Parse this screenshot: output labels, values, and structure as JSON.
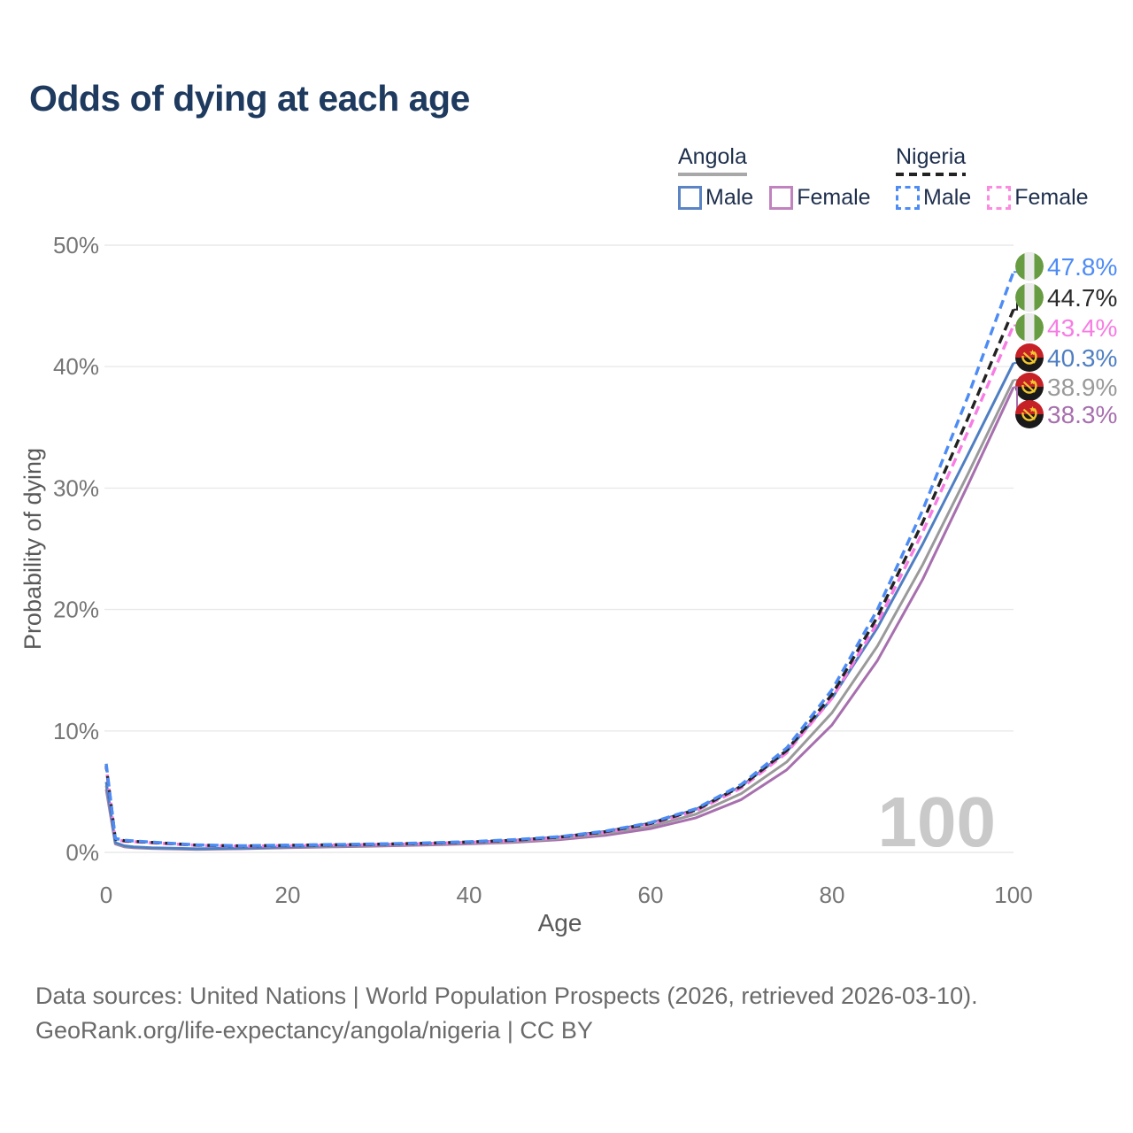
{
  "title": "Odds of dying at each age",
  "legend": {
    "groups": [
      {
        "name": "Angola",
        "line_style": "solid",
        "underline_color": "#a8a8a8",
        "items": [
          {
            "label": "Male",
            "color": "#5b84c4",
            "line_style": "solid"
          },
          {
            "label": "Female",
            "color": "#c083be",
            "line_style": "solid"
          }
        ]
      },
      {
        "name": "Nigeria",
        "line_style": "dashed",
        "underline_color": "#222222",
        "items": [
          {
            "label": "Male",
            "color": "#4d8bf5",
            "line_style": "dashed"
          },
          {
            "label": "Female",
            "color": "#fc8be0",
            "line_style": "dashed"
          }
        ]
      }
    ]
  },
  "footer": {
    "line1": "Data sources: United Nations | World Population Prospects (2026, retrieved 2026-03-10).",
    "line2": "GeoRank.org/life-expectancy/angola/nigeria | CC BY"
  },
  "chart_data": {
    "type": "line",
    "title": "Odds of dying at each age",
    "xlabel": "Age",
    "ylabel": "Probability of dying",
    "xlim": [
      0,
      100
    ],
    "ylim": [
      0,
      50
    ],
    "grid": "horizontal",
    "legend_position": "top-right",
    "age_marker": "100",
    "x_ticks": [
      {
        "v": 0,
        "label": "0"
      },
      {
        "v": 20,
        "label": "20"
      },
      {
        "v": 40,
        "label": "40"
      },
      {
        "v": 60,
        "label": "60"
      },
      {
        "v": 80,
        "label": "80"
      },
      {
        "v": 100,
        "label": "100"
      }
    ],
    "y_ticks": [
      {
        "v": 0,
        "label": "0%"
      },
      {
        "v": 10,
        "label": "10%"
      },
      {
        "v": 20,
        "label": "20%"
      },
      {
        "v": 30,
        "label": "30%"
      },
      {
        "v": 40,
        "label": "40%"
      },
      {
        "v": 50,
        "label": "50%"
      }
    ],
    "ages": [
      0,
      1,
      2,
      3,
      5,
      10,
      15,
      20,
      25,
      30,
      35,
      40,
      45,
      50,
      55,
      60,
      65,
      70,
      75,
      80,
      85,
      90,
      95,
      100
    ],
    "series": [
      {
        "name": "Nigeria Male",
        "country": "Nigeria",
        "sex": "Male",
        "color": "#4d8bf5",
        "line_style": "dashed",
        "flag": "nigeria",
        "end_value_pct": 47.8,
        "end_label": "47.8%",
        "label_color": "#4d8bf5",
        "values": [
          7.3,
          1.15,
          1.0,
          0.95,
          0.85,
          0.62,
          0.55,
          0.6,
          0.65,
          0.7,
          0.78,
          0.88,
          1.05,
          1.3,
          1.75,
          2.45,
          3.6,
          5.6,
          8.6,
          13.4,
          20.0,
          28.2,
          37.6,
          47.8
        ]
      },
      {
        "name": "Nigeria Both sexes",
        "country": "Nigeria",
        "sex": "Both sexes",
        "color": "#222222",
        "line_style": "dashed",
        "flag": "nigeria",
        "end_value_pct": 44.7,
        "end_label": "44.7%",
        "label_color": "#2b2b2b",
        "values": [
          7.15,
          1.1,
          0.96,
          0.91,
          0.82,
          0.6,
          0.53,
          0.58,
          0.63,
          0.68,
          0.75,
          0.85,
          1.0,
          1.26,
          1.7,
          2.38,
          3.5,
          5.45,
          8.4,
          13.0,
          19.4,
          27.2,
          35.8,
          44.7
        ]
      },
      {
        "name": "Nigeria Female",
        "country": "Nigeria",
        "sex": "Female",
        "color": "#f77ce3",
        "line_style": "dashed",
        "flag": "nigeria",
        "end_value_pct": 43.4,
        "end_label": "43.4%",
        "label_color": "#f77ce3",
        "values": [
          7.0,
          1.05,
          0.92,
          0.88,
          0.79,
          0.58,
          0.51,
          0.56,
          0.61,
          0.66,
          0.72,
          0.82,
          0.96,
          1.22,
          1.65,
          2.3,
          3.42,
          5.3,
          8.2,
          12.7,
          18.9,
          26.4,
          34.7,
          43.4
        ]
      },
      {
        "name": "Angola Male",
        "country": "Angola",
        "sex": "Male",
        "color": "#4f7fc2",
        "line_style": "solid",
        "flag": "angola",
        "end_value_pct": 40.3,
        "end_label": "40.3%",
        "label_color": "#4f7fc2",
        "values": [
          5.8,
          0.8,
          0.55,
          0.45,
          0.38,
          0.3,
          0.36,
          0.46,
          0.56,
          0.64,
          0.73,
          0.84,
          1.0,
          1.28,
          1.72,
          2.42,
          3.55,
          5.45,
          8.3,
          12.7,
          18.5,
          25.4,
          32.8,
          40.3
        ]
      },
      {
        "name": "Angola Both sexes",
        "country": "Angola",
        "sex": "Both sexes",
        "color": "#9a9a9a",
        "line_style": "solid",
        "flag": "angola",
        "end_value_pct": 38.9,
        "end_label": "38.9%",
        "label_color": "#9a9a9a",
        "values": [
          5.5,
          0.75,
          0.5,
          0.42,
          0.35,
          0.27,
          0.33,
          0.42,
          0.5,
          0.58,
          0.66,
          0.76,
          0.9,
          1.15,
          1.55,
          2.15,
          3.15,
          4.85,
          7.45,
          11.5,
          17.0,
          23.7,
          31.2,
          38.9
        ]
      },
      {
        "name": "Angola Female",
        "country": "Angola",
        "sex": "Female",
        "color": "#a76fae",
        "line_style": "solid",
        "flag": "angola",
        "end_value_pct": 38.3,
        "end_label": "38.3%",
        "label_color": "#a76fae",
        "values": [
          5.2,
          0.7,
          0.46,
          0.38,
          0.32,
          0.25,
          0.3,
          0.38,
          0.45,
          0.52,
          0.6,
          0.7,
          0.83,
          1.05,
          1.4,
          1.95,
          2.85,
          4.35,
          6.8,
          10.5,
          15.8,
          22.5,
          30.3,
          38.3
        ]
      }
    ],
    "colors": {
      "grid": "#e9e9e9",
      "tick_text": "#757575",
      "axis_title_text": "#595959",
      "watermark": "#c9c9c9",
      "nigeria_flag_green": "#679c42",
      "nigeria_flag_white": "#ececec",
      "angola_flag_red": "#c62127",
      "angola_flag_black": "#1a1a1a",
      "angola_flag_yellow": "#f3c72e"
    }
  }
}
